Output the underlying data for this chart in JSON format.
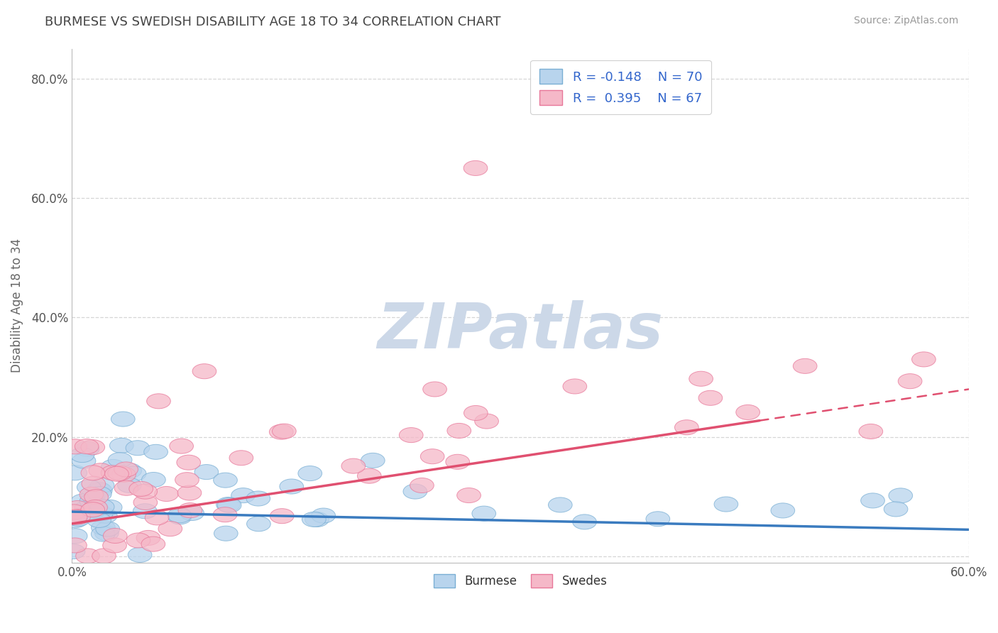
{
  "title": "BURMESE VS SWEDISH DISABILITY AGE 18 TO 34 CORRELATION CHART",
  "source": "Source: ZipAtlas.com",
  "ylabel": "Disability Age 18 to 34",
  "xlim": [
    0.0,
    0.6
  ],
  "ylim": [
    -0.01,
    0.85
  ],
  "xticks": [
    0.0,
    0.1,
    0.2,
    0.3,
    0.4,
    0.5,
    0.6
  ],
  "yticks": [
    0.0,
    0.2,
    0.4,
    0.6,
    0.8
  ],
  "burmese_fill": "#b8d4ed",
  "burmese_edge": "#7aafd4",
  "swedes_fill": "#f5b8c8",
  "swedes_edge": "#e8789a",
  "burmese_line_color": "#3a7bbf",
  "swedes_line_color": "#e05070",
  "legend_label_burmese": "R = -0.148    N = 70",
  "legend_label_swedes": "R =  0.395    N = 67",
  "background_color": "#ffffff",
  "grid_color": "#cccccc",
  "title_color": "#444444",
  "watermark": "ZIPatlas",
  "watermark_color": "#ccd8e8",
  "burmese_trend_y0": 0.075,
  "burmese_trend_y1": 0.045,
  "swedes_trend_y0": 0.055,
  "swedes_trend_y1": 0.28
}
